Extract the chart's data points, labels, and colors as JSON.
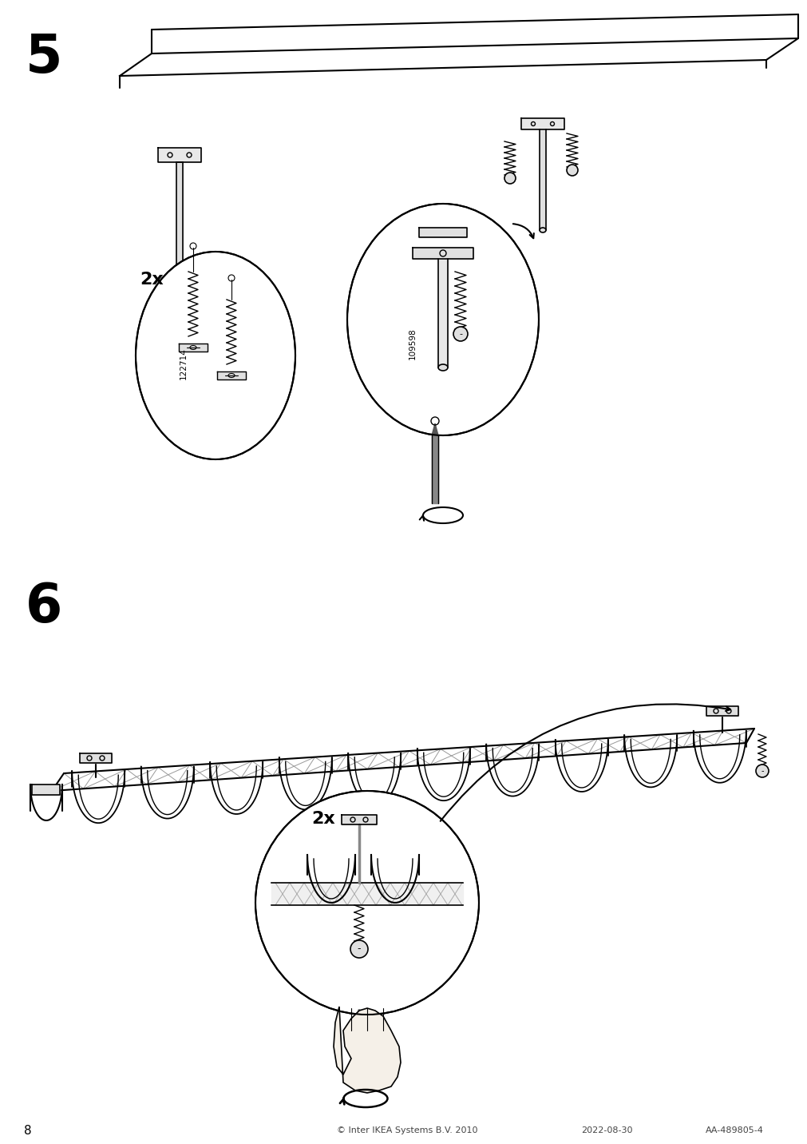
{
  "page_number": "8",
  "step5_label": "5",
  "step6_label": "6",
  "multiplier_label": "2x",
  "part_number_1": "122714",
  "part_number_2": "109598",
  "footer_text": "© Inter IKEA Systems B.V. 2010",
  "footer_date": "2022-08-30",
  "footer_code": "AA-489805-4",
  "bg_color": "#ffffff",
  "line_color": "#000000",
  "figure_width": 10.12,
  "figure_height": 14.32,
  "dpi": 100
}
